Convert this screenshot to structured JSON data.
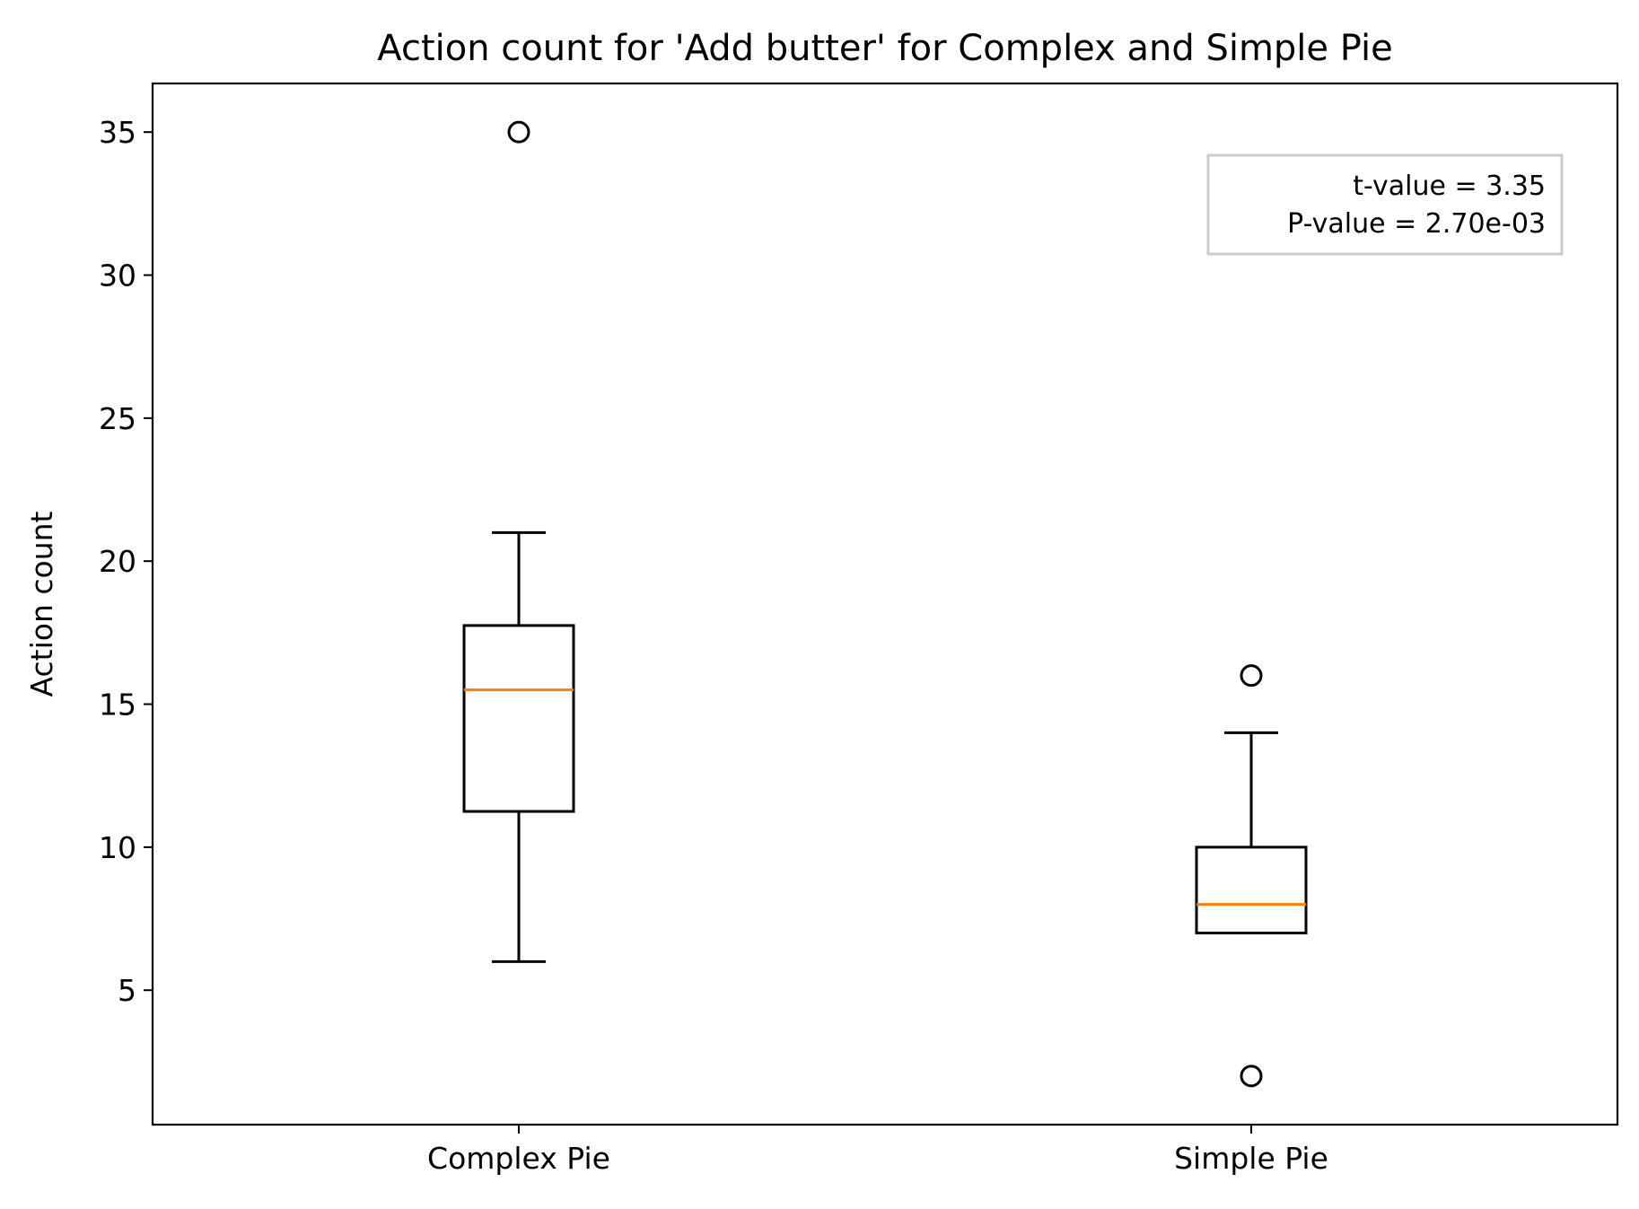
{
  "chart_data": {
    "type": "box",
    "title": "Action count for 'Add butter' for Complex and Simple Pie",
    "xlabel": "",
    "ylabel": "Action count",
    "ylim": [
      0.3,
      36.7
    ],
    "yticks": [
      5,
      10,
      15,
      20,
      25,
      30,
      35
    ],
    "categories": [
      "Complex Pie",
      "Simple Pie"
    ],
    "boxes": [
      {
        "category": "Complex Pie",
        "whisker_low": 6,
        "q1": 11.25,
        "median": 15.5,
        "q3": 17.75,
        "whisker_high": 21,
        "outliers": [
          35
        ]
      },
      {
        "category": "Simple Pie",
        "whisker_low": 7,
        "q1": 7,
        "median": 8,
        "q3": 10,
        "whisker_high": 14,
        "outliers": [
          16,
          2
        ]
      }
    ],
    "annotation": {
      "lines": [
        "t-value = 3.35",
        "P-value = 2.70e-03"
      ],
      "placement": "top-right"
    },
    "colors": {
      "median": "#ff7f0e",
      "box": "#000000",
      "annotation_border": "#cccccc"
    },
    "grid": false
  }
}
